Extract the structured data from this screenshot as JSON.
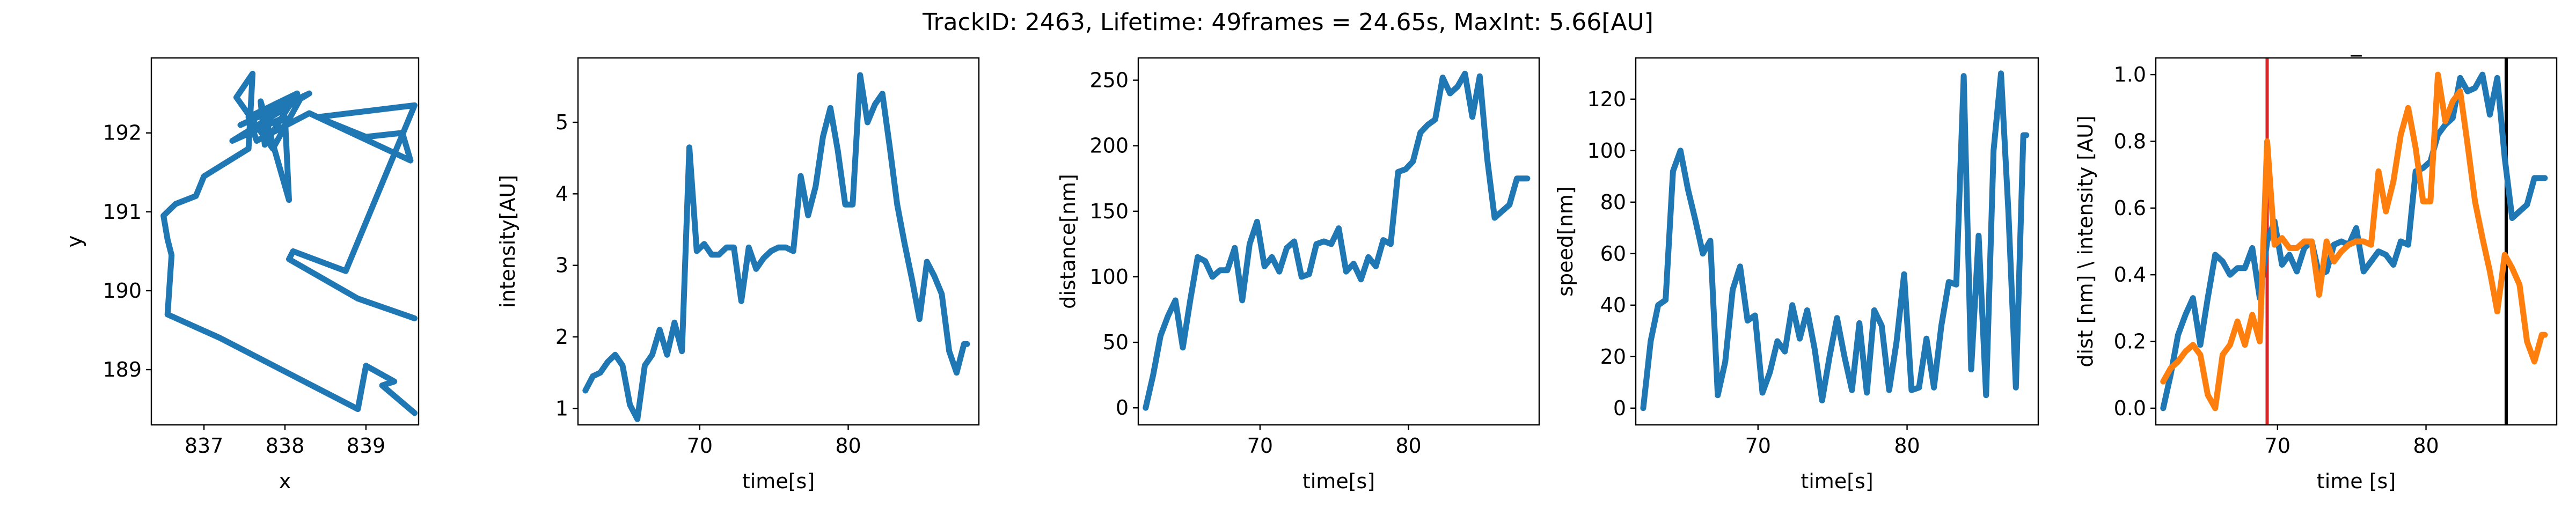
{
  "figure": {
    "title": "TrackID: 2463, Lifetime: 49frames = 24.65s, MaxInt: 5.66[AU]"
  },
  "chart_data": [
    {
      "id": "xy",
      "type": "line",
      "title": "",
      "xlabel": "x",
      "ylabel": "y",
      "xlim": [
        836.35,
        839.65
      ],
      "ylim": [
        188.3,
        192.95
      ],
      "xticks": [
        837,
        838,
        839
      ],
      "yticks": [
        189,
        190,
        191,
        192
      ],
      "color": "#1f77b4",
      "series": [
        {
          "x": [
            839.6,
            839.2,
            839.35,
            839.0,
            838.9,
            837.2,
            836.55,
            836.6,
            836.55,
            836.5,
            836.65,
            836.9,
            837.0,
            837.55,
            837.6,
            837.4,
            837.85,
            838.2,
            837.45,
            838.3,
            837.35,
            838.0,
            838.05,
            837.7,
            837.75,
            838.15,
            837.55,
            837.65,
            838.3,
            839.55,
            839.45,
            839.0,
            838.4,
            839.6,
            838.75,
            838.1,
            838.05,
            838.9,
            839.6
          ],
          "y": [
            188.45,
            188.8,
            188.85,
            189.05,
            188.5,
            189.4,
            189.7,
            190.45,
            190.65,
            190.95,
            191.1,
            191.2,
            191.45,
            191.8,
            192.75,
            192.45,
            191.8,
            192.45,
            192.1,
            192.5,
            191.9,
            192.2,
            191.15,
            192.4,
            191.85,
            192.5,
            192.2,
            191.9,
            192.25,
            191.65,
            192.0,
            191.95,
            192.2,
            192.35,
            190.25,
            190.5,
            190.4,
            189.9,
            189.65
          ]
        }
      ]
    },
    {
      "id": "intensity",
      "type": "line",
      "title": "",
      "xlabel": "time[s]",
      "ylabel": "intensity[AU]",
      "xlim": [
        61.8,
        88.8
      ],
      "ylim": [
        0.77,
        5.9
      ],
      "xticks": [
        70,
        80
      ],
      "yticks": [
        1,
        2,
        3,
        4,
        5
      ],
      "color": "#1f77b4",
      "series": [
        {
          "x": [
            62.3,
            62.8,
            63.3,
            63.8,
            64.3,
            64.8,
            65.3,
            65.8,
            66.3,
            66.8,
            67.3,
            67.8,
            68.3,
            68.8,
            69.3,
            69.8,
            70.3,
            70.8,
            71.3,
            71.8,
            72.3,
            72.8,
            73.3,
            73.8,
            74.3,
            74.8,
            75.3,
            75.8,
            76.3,
            76.8,
            77.3,
            77.8,
            78.3,
            78.8,
            79.3,
            79.8,
            80.3,
            80.8,
            81.3,
            81.8,
            82.3,
            82.8,
            83.3,
            83.8,
            84.3,
            84.8,
            85.3,
            85.8,
            86.3,
            86.8,
            87.3,
            87.8,
            88.0
          ],
          "y": [
            1.25,
            1.45,
            1.5,
            1.65,
            1.75,
            1.6,
            1.05,
            0.85,
            1.6,
            1.75,
            2.1,
            1.75,
            2.2,
            1.8,
            4.65,
            3.2,
            3.3,
            3.15,
            3.15,
            3.25,
            3.25,
            2.5,
            3.25,
            2.95,
            3.1,
            3.2,
            3.25,
            3.25,
            3.2,
            4.25,
            3.7,
            4.1,
            4.8,
            5.2,
            4.6,
            3.85,
            3.85,
            5.66,
            5.0,
            5.25,
            5.4,
            4.65,
            3.85,
            3.3,
            2.8,
            2.25,
            3.05,
            2.85,
            2.6,
            1.8,
            1.5,
            1.9,
            1.9
          ]
        }
      ]
    },
    {
      "id": "distance",
      "type": "line",
      "title": "",
      "xlabel": "time[s]",
      "ylabel": "distance[nm]",
      "xlim": [
        61.8,
        88.8
      ],
      "ylim": [
        -13,
        267
      ],
      "xticks": [
        70,
        80
      ],
      "yticks": [
        0,
        50,
        100,
        150,
        200,
        250
      ],
      "color": "#1f77b4",
      "series": [
        {
          "x": [
            62.3,
            62.8,
            63.3,
            63.8,
            64.3,
            64.8,
            65.3,
            65.8,
            66.3,
            66.8,
            67.3,
            67.8,
            68.3,
            68.8,
            69.3,
            69.8,
            70.3,
            70.8,
            71.3,
            71.8,
            72.3,
            72.8,
            73.3,
            73.8,
            74.3,
            74.8,
            75.3,
            75.8,
            76.3,
            76.8,
            77.3,
            77.8,
            78.3,
            78.8,
            79.3,
            79.8,
            80.3,
            80.8,
            81.3,
            81.8,
            82.3,
            82.8,
            83.3,
            83.8,
            84.3,
            84.8,
            85.3,
            85.8,
            86.3,
            86.8,
            87.3,
            87.8,
            88.0
          ],
          "y": [
            0,
            25,
            55,
            70,
            82,
            46,
            82,
            115,
            112,
            100,
            105,
            105,
            122,
            82,
            125,
            142,
            108,
            115,
            104,
            122,
            127,
            100,
            102,
            125,
            127,
            125,
            137,
            104,
            110,
            98,
            115,
            108,
            128,
            125,
            180,
            182,
            188,
            210,
            216,
            220,
            252,
            240,
            245,
            255,
            222,
            253,
            190,
            145,
            150,
            155,
            175,
            175,
            175
          ]
        }
      ]
    },
    {
      "id": "speed",
      "type": "line",
      "title": "",
      "xlabel": "time[s]",
      "ylabel": "speed[nm]",
      "xlim": [
        61.8,
        88.8
      ],
      "ylim": [
        -6.5,
        136
      ],
      "xticks": [
        70,
        80
      ],
      "yticks": [
        0,
        20,
        40,
        60,
        80,
        100,
        120
      ],
      "color": "#1f77b4",
      "series": [
        {
          "x": [
            62.3,
            62.8,
            63.3,
            63.8,
            64.3,
            64.8,
            65.3,
            65.8,
            66.3,
            66.8,
            67.3,
            67.8,
            68.3,
            68.8,
            69.3,
            69.8,
            70.3,
            70.8,
            71.3,
            71.8,
            72.3,
            72.8,
            73.3,
            73.8,
            74.3,
            74.8,
            75.3,
            75.8,
            76.3,
            76.8,
            77.3,
            77.8,
            78.3,
            78.8,
            79.3,
            79.8,
            80.3,
            80.8,
            81.3,
            81.8,
            82.3,
            82.8,
            83.3,
            83.8,
            84.3,
            84.8,
            85.3,
            85.8,
            86.3,
            86.8,
            87.3,
            87.8,
            88.0
          ],
          "y": [
            0,
            26,
            40,
            42,
            92,
            100,
            85,
            73,
            60,
            65,
            5,
            18,
            46,
            55,
            34,
            36,
            6,
            14,
            26,
            22,
            40,
            27,
            38,
            23,
            3,
            20,
            35,
            20,
            7,
            33,
            6,
            38,
            32,
            7,
            26,
            52,
            7,
            8,
            27,
            8,
            32,
            49,
            48,
            129,
            15,
            67,
            5,
            100,
            130,
            76,
            8,
            106,
            106
          ]
        }
      ]
    },
    {
      "id": "normalized",
      "type": "line",
      "title": "_",
      "xlabel": "time [s]",
      "ylabel": "dist [nm] \\ intensity [AU]",
      "xlim": [
        61.8,
        88.8
      ],
      "ylim": [
        -0.05,
        1.05
      ],
      "xticks": [
        70,
        80
      ],
      "yticks": [
        0.0,
        0.2,
        0.4,
        0.6,
        0.8,
        1.0
      ],
      "ytick_labels": [
        "0.0",
        "0.2",
        "0.4",
        "0.6",
        "0.8",
        "1.0"
      ],
      "vlines": [
        {
          "x": 69.3,
          "color": "#d62728"
        },
        {
          "x": 85.4,
          "color": "#000000"
        }
      ],
      "series": [
        {
          "color": "#1f77b4",
          "x": [
            62.3,
            62.8,
            63.3,
            63.8,
            64.3,
            64.8,
            65.3,
            65.8,
            66.3,
            66.8,
            67.3,
            67.8,
            68.3,
            68.8,
            69.3,
            69.8,
            70.3,
            70.8,
            71.3,
            71.8,
            72.3,
            72.8,
            73.3,
            73.8,
            74.3,
            74.8,
            75.3,
            75.8,
            76.3,
            76.8,
            77.3,
            77.8,
            78.3,
            78.8,
            79.3,
            79.8,
            80.3,
            80.8,
            81.3,
            81.8,
            82.3,
            82.8,
            83.3,
            83.8,
            84.3,
            84.8,
            85.3,
            85.8,
            86.3,
            86.8,
            87.3,
            87.8,
            88.0
          ],
          "y": [
            0.0,
            0.1,
            0.22,
            0.28,
            0.33,
            0.19,
            0.33,
            0.46,
            0.44,
            0.4,
            0.42,
            0.42,
            0.48,
            0.33,
            0.5,
            0.56,
            0.43,
            0.46,
            0.41,
            0.48,
            0.5,
            0.4,
            0.41,
            0.49,
            0.5,
            0.49,
            0.54,
            0.41,
            0.44,
            0.47,
            0.46,
            0.43,
            0.5,
            0.49,
            0.71,
            0.72,
            0.74,
            0.82,
            0.85,
            0.87,
            0.99,
            0.95,
            0.96,
            1.0,
            0.88,
            0.99,
            0.75,
            0.57,
            0.59,
            0.61,
            0.69,
            0.69,
            0.69
          ]
        },
        {
          "color": "#ff7f0e",
          "x": [
            62.3,
            62.8,
            63.3,
            63.8,
            64.3,
            64.8,
            65.3,
            65.8,
            66.3,
            66.8,
            67.3,
            67.8,
            68.3,
            68.8,
            69.3,
            69.8,
            70.3,
            70.8,
            71.3,
            71.8,
            72.3,
            72.8,
            73.3,
            73.8,
            74.3,
            74.8,
            75.3,
            75.8,
            76.3,
            76.8,
            77.3,
            77.8,
            78.3,
            78.8,
            79.3,
            79.8,
            80.3,
            80.8,
            81.3,
            81.8,
            82.3,
            82.8,
            83.3,
            83.8,
            84.3,
            84.8,
            85.3,
            85.8,
            86.3,
            86.8,
            87.3,
            87.8,
            88.0
          ],
          "y": [
            0.08,
            0.12,
            0.14,
            0.17,
            0.19,
            0.16,
            0.04,
            0.0,
            0.16,
            0.19,
            0.26,
            0.19,
            0.28,
            0.2,
            0.8,
            0.49,
            0.51,
            0.48,
            0.48,
            0.5,
            0.5,
            0.34,
            0.5,
            0.44,
            0.47,
            0.49,
            0.5,
            0.5,
            0.49,
            0.71,
            0.59,
            0.68,
            0.82,
            0.9,
            0.78,
            0.62,
            0.62,
            1.0,
            0.86,
            0.92,
            0.95,
            0.79,
            0.62,
            0.51,
            0.41,
            0.29,
            0.46,
            0.42,
            0.37,
            0.2,
            0.14,
            0.22,
            0.22
          ]
        }
      ]
    }
  ]
}
